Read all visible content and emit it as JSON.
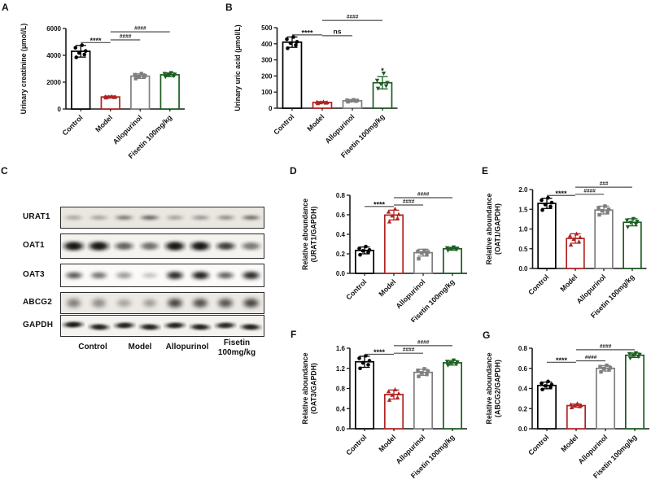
{
  "figure_type": "multi-panel scientific figure",
  "colors": {
    "background": "#ffffff",
    "control": "#000000",
    "model": "#b02422",
    "allopurinol": "#7f7f7f",
    "fisetin": "#1b5e20",
    "axis": "#1a1a1a",
    "sig_line": "#4d4d4d",
    "text": "#111111"
  },
  "panels": {
    "A": {
      "label": "A"
    },
    "B": {
      "label": "B"
    },
    "C": {
      "label": "C",
      "blot": {
        "rows": [
          {
            "protein": "URAT1",
            "intensities": [
              0.3,
              0.32,
              0.52,
              0.62,
              0.33,
              0.38,
              0.42,
              0.58
            ]
          },
          {
            "protein": "OAT1",
            "intensities": [
              0.95,
              0.95,
              0.6,
              0.55,
              0.95,
              0.95,
              0.75,
              0.5
            ]
          },
          {
            "protein": "OAT3",
            "intensities": [
              0.65,
              0.55,
              0.38,
              0.22,
              0.85,
              0.9,
              0.62,
              0.85
            ]
          },
          {
            "protein": "ABCG2",
            "intensities": [
              0.48,
              0.42,
              0.32,
              0.35,
              0.75,
              0.7,
              0.68,
              0.75
            ]
          },
          {
            "protein": "GAPDH",
            "intensities": [
              0.92,
              0.88,
              0.88,
              0.88,
              0.88,
              0.88,
              0.85,
              0.88
            ]
          }
        ],
        "lanes_per_group": 2,
        "group_labels": [
          [
            "Control"
          ],
          [
            "Model"
          ],
          [
            "Allopurinol"
          ],
          [
            "Fisetin",
            "100mg/kg"
          ]
        ]
      }
    },
    "D": {
      "label": "D"
    },
    "E": {
      "label": "E"
    },
    "F": {
      "label": "F"
    },
    "G": {
      "label": "G"
    }
  },
  "chart_data": [
    {
      "panel": "A",
      "type": "bar",
      "ylabel": [
        "Urinary creatinine (µmol/L)"
      ],
      "categories": [
        "Control",
        "Model",
        "Allopurinol",
        "Fisetin 100mg/kg"
      ],
      "values": [
        4300,
        900,
        2450,
        2550
      ],
      "errors": [
        430,
        70,
        170,
        140
      ],
      "points": [
        [
          3850,
          4060,
          4180,
          4320,
          4560,
          4760
        ],
        [
          845,
          875,
          895,
          905,
          925,
          945
        ],
        [
          2270,
          2370,
          2430,
          2480,
          2560,
          2640
        ],
        [
          2400,
          2470,
          2530,
          2570,
          2630,
          2690
        ]
      ],
      "bar_colors": [
        "#000000",
        "#b02422",
        "#7f7f7f",
        "#1b5e20"
      ],
      "markers": [
        "circle",
        "triangle-up",
        "square",
        "triangle-down"
      ],
      "ylim": [
        0,
        6000
      ],
      "ytick_step": 2000,
      "ytick_decimals": 0,
      "sig": [
        {
          "from": 0,
          "to": 1,
          "y": 4950,
          "label": "****"
        },
        {
          "from": 1,
          "to": 2,
          "y": 5150,
          "label": "####"
        },
        {
          "from": 1,
          "to": 3,
          "y": 5750,
          "label": "####"
        }
      ],
      "extra_marks": []
    },
    {
      "panel": "B",
      "type": "bar",
      "ylabel": [
        "Urinary uric acid (µmol/L)"
      ],
      "categories": [
        "Control",
        "Model",
        "Allopurinol",
        "Fisetin 100mg/kg"
      ],
      "values": [
        410,
        36,
        46,
        158
      ],
      "errors": [
        32,
        5,
        6,
        38
      ],
      "points": [
        [
          372,
          392,
          404,
          412,
          428,
          442
        ],
        [
          30,
          33,
          35,
          36,
          38,
          40
        ],
        [
          40,
          44,
          46,
          48,
          50,
          52
        ],
        [
          122,
          138,
          150,
          158,
          172,
          216
        ]
      ],
      "bar_colors": [
        "#000000",
        "#b02422",
        "#7f7f7f",
        "#1b5e20"
      ],
      "markers": [
        "circle",
        "triangle-up",
        "square",
        "triangle-down"
      ],
      "ylim": [
        0,
        500
      ],
      "ytick_step": 100,
      "ytick_decimals": 0,
      "sig": [
        {
          "from": 0,
          "to": 1,
          "y": 455,
          "label": "****"
        },
        {
          "from": 1,
          "to": 2,
          "y": 450,
          "label": "ns"
        },
        {
          "from": 1,
          "to": 3,
          "y": 545,
          "label": "####"
        }
      ],
      "extra_marks": [
        {
          "bar": 3,
          "y": 232,
          "label": "*"
        }
      ]
    },
    {
      "panel": "D",
      "type": "bar",
      "ylabel": [
        "Relative aboundance",
        "(URAT1/GAPDH)"
      ],
      "categories": [
        "Control",
        "Model",
        "Allopurinol",
        "Fisetin 100mg/kg"
      ],
      "values": [
        0.235,
        0.597,
        0.212,
        0.252
      ],
      "errors": [
        0.035,
        0.05,
        0.035,
        0.015
      ],
      "points": [
        [
          0.19,
          0.215,
          0.23,
          0.24,
          0.255,
          0.275
        ],
        [
          0.53,
          0.565,
          0.59,
          0.605,
          0.63,
          0.66
        ],
        [
          0.15,
          0.19,
          0.21,
          0.22,
          0.225,
          0.235
        ],
        [
          0.235,
          0.245,
          0.25,
          0.255,
          0.26,
          0.268
        ]
      ],
      "bar_colors": [
        "#000000",
        "#b02422",
        "#7f7f7f",
        "#1b5e20"
      ],
      "markers": [
        "circle",
        "triangle-up",
        "square",
        "triangle-down"
      ],
      "ylim": [
        0,
        0.8
      ],
      "ytick_step": 0.2,
      "ytick_decimals": 1,
      "sig": [
        {
          "from": 0,
          "to": 1,
          "y": 0.685,
          "label": "****"
        },
        {
          "from": 1,
          "to": 2,
          "y": 0.7,
          "label": "####"
        },
        {
          "from": 1,
          "to": 3,
          "y": 0.775,
          "label": "####"
        }
      ],
      "extra_marks": []
    },
    {
      "panel": "E",
      "type": "bar",
      "ylabel": [
        "Relative aboundance",
        "(OAT1/GAPDH)"
      ],
      "categories": [
        "Control",
        "Model",
        "Allopurinol",
        "Fisetin 100mg/kg"
      ],
      "values": [
        1.65,
        0.76,
        1.48,
        1.17
      ],
      "errors": [
        0.13,
        0.12,
        0.1,
        0.09
      ],
      "points": [
        [
          1.48,
          1.57,
          1.62,
          1.67,
          1.73,
          1.79
        ],
        [
          0.6,
          0.68,
          0.74,
          0.79,
          0.83,
          0.88
        ],
        [
          1.36,
          1.42,
          1.46,
          1.5,
          1.54,
          1.58
        ],
        [
          1.05,
          1.12,
          1.16,
          1.19,
          1.22,
          1.26
        ]
      ],
      "bar_colors": [
        "#000000",
        "#b02422",
        "#7f7f7f",
        "#1b5e20"
      ],
      "markers": [
        "circle",
        "triangle-up",
        "square",
        "triangle-down"
      ],
      "ylim": [
        0,
        2.0
      ],
      "ytick_step": 0.5,
      "ytick_decimals": 1,
      "sig": [
        {
          "from": 0,
          "to": 1,
          "y": 1.85,
          "label": "****"
        },
        {
          "from": 1,
          "to": 2,
          "y": 1.88,
          "label": "####"
        },
        {
          "from": 1,
          "to": 3,
          "y": 2.06,
          "label": "###"
        }
      ],
      "extra_marks": []
    },
    {
      "panel": "F",
      "type": "bar",
      "ylabel": [
        "Relative aboundance",
        "(OAT3/GAPDH)"
      ],
      "categories": [
        "Control",
        "Model",
        "Allopurinol",
        "Fisetin 100mg/kg"
      ],
      "values": [
        1.33,
        0.68,
        1.12,
        1.31
      ],
      "errors": [
        0.11,
        0.09,
        0.06,
        0.045
      ],
      "points": [
        [
          1.2,
          1.27,
          1.31,
          1.35,
          1.4,
          1.45
        ],
        [
          0.57,
          0.62,
          0.67,
          0.7,
          0.74,
          0.78
        ],
        [
          1.04,
          1.08,
          1.11,
          1.14,
          1.16,
          1.19
        ],
        [
          1.26,
          1.29,
          1.305,
          1.32,
          1.335,
          1.36
        ]
      ],
      "bar_colors": [
        "#000000",
        "#b02422",
        "#7f7f7f",
        "#1b5e20"
      ],
      "markers": [
        "circle",
        "triangle-up",
        "square",
        "triangle-down"
      ],
      "ylim": [
        0,
        1.6
      ],
      "ytick_step": 0.4,
      "ytick_decimals": 1,
      "sig": [
        {
          "from": 0,
          "to": 1,
          "y": 1.48,
          "label": "****"
        },
        {
          "from": 1,
          "to": 2,
          "y": 1.5,
          "label": "####"
        },
        {
          "from": 1,
          "to": 3,
          "y": 1.65,
          "label": "####"
        }
      ],
      "extra_marks": []
    },
    {
      "panel": "G",
      "type": "bar",
      "ylabel": [
        "Relative aboundance",
        "(ABCG2/GAPDH)"
      ],
      "categories": [
        "Control",
        "Model",
        "Allopurinol",
        "Fisetin 100mg/kg"
      ],
      "values": [
        0.43,
        0.23,
        0.6,
        0.73
      ],
      "errors": [
        0.033,
        0.016,
        0.027,
        0.022
      ],
      "points": [
        [
          0.39,
          0.41,
          0.425,
          0.437,
          0.452,
          0.47
        ],
        [
          0.212,
          0.222,
          0.228,
          0.233,
          0.24,
          0.25
        ],
        [
          0.565,
          0.585,
          0.598,
          0.605,
          0.617,
          0.63
        ],
        [
          0.7,
          0.718,
          0.728,
          0.736,
          0.744,
          0.752
        ]
      ],
      "bar_colors": [
        "#000000",
        "#b02422",
        "#7f7f7f",
        "#1b5e20"
      ],
      "markers": [
        "circle",
        "triangle-up",
        "square",
        "triangle-down"
      ],
      "ylim": [
        0,
        0.8
      ],
      "ytick_step": 0.2,
      "ytick_decimals": 1,
      "sig": [
        {
          "from": 0,
          "to": 1,
          "y": 0.66,
          "label": "****"
        },
        {
          "from": 1,
          "to": 2,
          "y": 0.675,
          "label": "####"
        },
        {
          "from": 1,
          "to": 3,
          "y": 0.785,
          "label": "####"
        }
      ],
      "extra_marks": []
    }
  ]
}
